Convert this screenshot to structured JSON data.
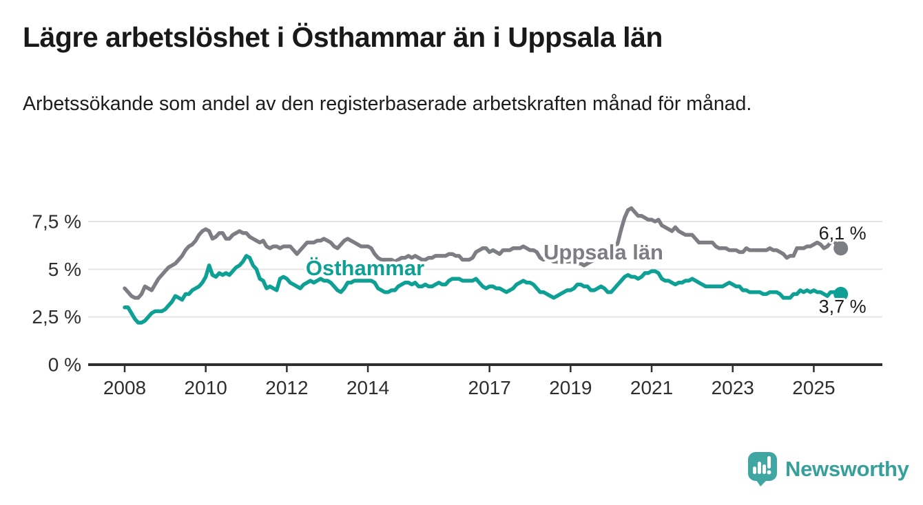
{
  "chart_data": {
    "type": "line",
    "title": "Lägre arbetslöshet i Östhammar än i Uppsala län",
    "subtitle": "Arbetssökande som andel av den registerbaserade arbetskraften månad för månad.",
    "xlabel": "",
    "ylabel": "",
    "grid": "horizontal",
    "legend_position": "inline-labels",
    "x_start": "2008-01",
    "x_end": "2025-09",
    "frequency": "monthly",
    "x_range_years": [
      2007.13,
      2026.67
    ],
    "ylim": [
      0,
      9.4
    ],
    "y_ticks": [
      {
        "value": 0,
        "label": "0 %"
      },
      {
        "value": 2.5,
        "label": "2,5 %"
      },
      {
        "value": 5,
        "label": "5 %"
      },
      {
        "value": 7.5,
        "label": "7,5 %"
      }
    ],
    "x_ticks": [
      {
        "value": 2008,
        "label": "2008"
      },
      {
        "value": 2010,
        "label": "2010"
      },
      {
        "value": 2012,
        "label": "2012"
      },
      {
        "value": 2014,
        "label": "2014"
      },
      {
        "value": 2017,
        "label": "2017"
      },
      {
        "value": 2019,
        "label": "2019"
      },
      {
        "value": 2021,
        "label": "2021"
      },
      {
        "value": 2023,
        "label": "2023"
      },
      {
        "value": 2025,
        "label": "2025"
      }
    ],
    "series": [
      {
        "name": "Uppsala län",
        "color": "#7d7d84",
        "end_label": "6,1 %",
        "last_value": 6.1,
        "values": [
          4.0,
          3.8,
          3.6,
          3.5,
          3.5,
          3.7,
          4.1,
          4.0,
          3.9,
          4.2,
          4.5,
          4.7,
          4.9,
          5.1,
          5.2,
          5.3,
          5.5,
          5.7,
          6.0,
          6.2,
          6.3,
          6.5,
          6.8,
          7.0,
          7.1,
          7.0,
          6.6,
          6.7,
          6.9,
          6.9,
          6.6,
          6.6,
          6.8,
          6.9,
          7.0,
          6.9,
          6.9,
          6.7,
          6.6,
          6.5,
          6.4,
          6.5,
          6.2,
          6.1,
          6.2,
          6.2,
          6.1,
          6.2,
          6.2,
          6.2,
          6.0,
          5.8,
          6.0,
          6.2,
          6.4,
          6.4,
          6.4,
          6.5,
          6.5,
          6.6,
          6.5,
          6.4,
          6.2,
          6.1,
          6.3,
          6.5,
          6.6,
          6.5,
          6.4,
          6.3,
          6.2,
          6.2,
          6.2,
          6.1,
          5.8,
          5.6,
          5.5,
          5.5,
          5.5,
          5.5,
          5.4,
          5.5,
          5.6,
          5.6,
          5.7,
          5.6,
          5.7,
          5.6,
          5.5,
          5.5,
          5.6,
          5.6,
          5.7,
          5.7,
          5.7,
          5.7,
          5.8,
          5.8,
          5.7,
          5.7,
          5.5,
          5.5,
          5.5,
          5.6,
          5.9,
          6.0,
          6.1,
          6.1,
          5.9,
          6.0,
          5.9,
          5.8,
          6.0,
          6.0,
          6.0,
          6.1,
          6.1,
          6.1,
          6.2,
          6.1,
          6.0,
          6.0,
          5.9,
          5.6,
          5.5,
          5.6,
          5.5,
          5.4,
          5.4,
          5.3,
          5.4,
          5.4,
          5.4,
          5.3,
          5.3,
          5.3,
          5.2,
          5.3,
          5.4,
          5.5,
          5.6,
          5.7,
          5.8,
          5.9,
          5.9,
          6.0,
          6.4,
          7.1,
          7.7,
          8.1,
          8.2,
          8.0,
          7.8,
          7.8,
          7.7,
          7.6,
          7.6,
          7.5,
          7.6,
          7.3,
          7.2,
          7.1,
          7.0,
          7.2,
          7.0,
          6.9,
          6.8,
          6.8,
          6.8,
          6.6,
          6.4,
          6.4,
          6.4,
          6.4,
          6.4,
          6.2,
          6.1,
          6.1,
          6.1,
          6.0,
          6.0,
          6.0,
          5.9,
          5.9,
          6.1,
          6.0,
          6.0,
          6.0,
          6.0,
          6.0,
          6.0,
          6.1,
          6.0,
          6.0,
          5.9,
          5.8,
          5.6,
          5.7,
          5.7,
          6.1,
          6.1,
          6.1,
          6.2,
          6.2,
          6.3,
          6.4,
          6.3,
          6.1,
          6.2,
          6.4,
          6.5,
          6.2,
          6.1
        ]
      },
      {
        "name": "Östhammar",
        "color": "#0ea094",
        "end_label": "3,7 %",
        "last_value": 3.7,
        "values": [
          3.0,
          3.0,
          2.7,
          2.4,
          2.2,
          2.2,
          2.3,
          2.5,
          2.7,
          2.8,
          2.8,
          2.8,
          2.9,
          3.1,
          3.3,
          3.6,
          3.5,
          3.4,
          3.7,
          3.7,
          3.9,
          4.0,
          4.1,
          4.3,
          4.6,
          5.2,
          4.7,
          4.6,
          4.8,
          4.7,
          4.8,
          4.7,
          4.9,
          5.1,
          5.2,
          5.4,
          5.7,
          5.6,
          5.2,
          5.0,
          4.5,
          4.4,
          4.0,
          4.1,
          4.0,
          3.9,
          4.5,
          4.6,
          4.5,
          4.3,
          4.2,
          4.1,
          4.0,
          4.2,
          4.3,
          4.4,
          4.3,
          4.4,
          4.5,
          4.4,
          4.4,
          4.3,
          4.1,
          3.9,
          3.8,
          4.0,
          4.3,
          4.3,
          4.4,
          4.4,
          4.4,
          4.4,
          4.4,
          4.4,
          4.3,
          4.0,
          3.9,
          3.8,
          3.8,
          3.9,
          3.9,
          4.1,
          4.2,
          4.3,
          4.3,
          4.2,
          4.3,
          4.1,
          4.1,
          4.2,
          4.1,
          4.1,
          4.2,
          4.3,
          4.2,
          4.2,
          4.4,
          4.5,
          4.5,
          4.5,
          4.4,
          4.4,
          4.4,
          4.4,
          4.5,
          4.3,
          4.1,
          4.0,
          4.1,
          4.1,
          4.0,
          4.0,
          3.9,
          3.8,
          3.9,
          4.0,
          4.2,
          4.3,
          4.4,
          4.3,
          4.3,
          4.2,
          4.0,
          3.8,
          3.8,
          3.7,
          3.6,
          3.5,
          3.6,
          3.7,
          3.8,
          3.9,
          3.9,
          4.0,
          4.2,
          4.2,
          4.1,
          4.1,
          3.9,
          3.9,
          4.0,
          4.1,
          4.0,
          3.8,
          3.8,
          4.0,
          4.2,
          4.4,
          4.6,
          4.7,
          4.6,
          4.6,
          4.5,
          4.6,
          4.8,
          4.8,
          4.9,
          4.9,
          4.8,
          4.5,
          4.4,
          4.4,
          4.3,
          4.2,
          4.3,
          4.3,
          4.4,
          4.4,
          4.5,
          4.4,
          4.3,
          4.2,
          4.1,
          4.1,
          4.1,
          4.1,
          4.1,
          4.1,
          4.2,
          4.3,
          4.2,
          4.1,
          4.1,
          3.9,
          3.9,
          3.8,
          3.8,
          3.8,
          3.8,
          3.7,
          3.7,
          3.8,
          3.8,
          3.8,
          3.7,
          3.5,
          3.5,
          3.5,
          3.7,
          3.7,
          3.9,
          3.8,
          3.9,
          3.8,
          3.9,
          3.8,
          3.8,
          3.7,
          3.6,
          3.8,
          3.8,
          3.7,
          3.7
        ]
      }
    ]
  },
  "branding": {
    "logo_text": "Newsworthy",
    "logo_color": "#3fa6a1"
  }
}
